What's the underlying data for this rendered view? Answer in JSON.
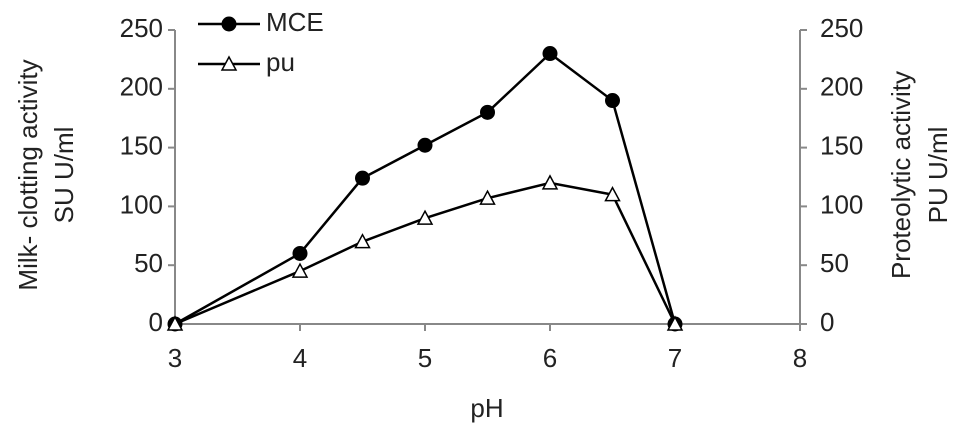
{
  "chart_data": {
    "type": "line",
    "xlabel": "pH",
    "ylabel": [
      "Milk- clotting activity",
      "SU U/ml"
    ],
    "y2label": [
      "Proteolytic activity",
      "PU U/ml"
    ],
    "xlim": [
      3,
      8
    ],
    "xticks": [
      3,
      4,
      5,
      6,
      7,
      8
    ],
    "ylim": [
      0,
      250
    ],
    "yticks": [
      0,
      50,
      100,
      150,
      200,
      250
    ],
    "y2lim": [
      0,
      250
    ],
    "y2ticks": [
      0,
      50,
      100,
      150,
      200,
      250
    ],
    "legend": "upper left",
    "series": [
      {
        "name": "MCE",
        "color": "#000000",
        "marker": "circle",
        "x": [
          3,
          4,
          4.5,
          5,
          5.5,
          6,
          6.5,
          7
        ],
        "values": [
          0,
          60,
          124,
          152,
          180,
          230,
          190,
          0
        ]
      },
      {
        "name": "pu",
        "color": "#000000",
        "marker": "triangle",
        "axis": "y2",
        "x": [
          3,
          4,
          4.5,
          5,
          5.5,
          6,
          6.5,
          7
        ],
        "values": [
          0,
          45,
          70,
          90,
          107,
          120,
          110,
          0
        ]
      }
    ]
  }
}
